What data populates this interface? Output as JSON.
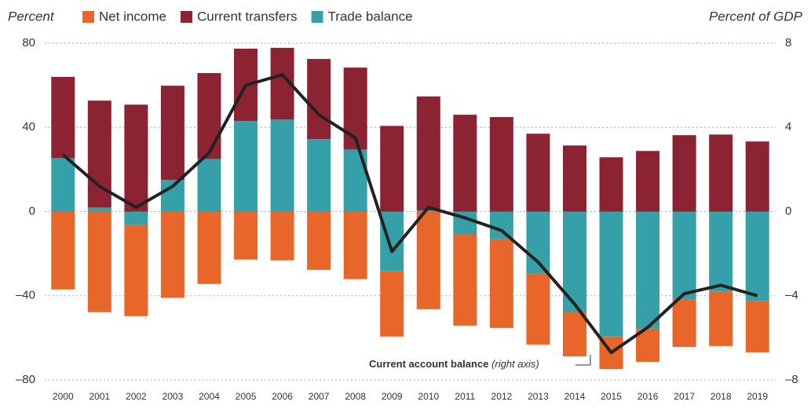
{
  "chart_data": {
    "type": "bar",
    "y_label": "Percent",
    "y2_label": "Percent of GDP",
    "categories": [
      "2000",
      "2001",
      "2002",
      "2003",
      "2004",
      "2005",
      "2006",
      "2007",
      "2008",
      "2009",
      "2010",
      "2011",
      "2012",
      "2013",
      "2014",
      "2015",
      "2016",
      "2017",
      "2018",
      "2019"
    ],
    "series": [
      {
        "name": "Net income",
        "color": "#e8662a",
        "values": [
          -37,
          -47.8,
          -43.3,
          -41,
          -34.4,
          -22.8,
          -23.2,
          -27.7,
          -32.1,
          -31,
          -46.4,
          -43.4,
          -42.2,
          -33.7,
          -20.9,
          -15.4,
          -15.7,
          -22.4,
          -25.8,
          -24.3
        ]
      },
      {
        "name": "Current transfers",
        "color": "#8b2332",
        "values": [
          38.6,
          50.8,
          50.8,
          44.8,
          40.8,
          34.4,
          34.1,
          38.1,
          38.9,
          40.7,
          54.2,
          46,
          44.9,
          37,
          31.4,
          25.8,
          28.8,
          36.3,
          36.6,
          33.3
        ]
      },
      {
        "name": "Trade balance",
        "color": "#36a0a8",
        "values": [
          25.4,
          1.9,
          -6.4,
          15,
          25,
          43,
          43.7,
          34.4,
          29.5,
          -28.4,
          0.5,
          -10.8,
          -13.1,
          -29.5,
          -47.9,
          -59.4,
          -55.7,
          -41.9,
          -38.1,
          -42.6
        ]
      },
      {
        "name": "Current account balance",
        "type": "line",
        "axis": "y2",
        "color": "#222222",
        "values": [
          2.7,
          1.2,
          0.2,
          1.2,
          2.8,
          6.0,
          6.5,
          4.6,
          3.5,
          -1.9,
          0.2,
          -0.3,
          -0.9,
          -2.4,
          -4.4,
          -6.7,
          -5.5,
          -3.9,
          -3.5,
          -4.0
        ]
      }
    ],
    "annotation": {
      "text": "Current account balance",
      "note": "(right axis)"
    },
    "ylim": [
      -80,
      80
    ],
    "yticks": [
      {
        "value": -80,
        "label": "–80"
      },
      {
        "value": -40,
        "label": "–40"
      },
      0,
      40,
      80
    ],
    "y2lim": [
      -8,
      8
    ],
    "y2ticks": [
      {
        "value": -8,
        "label": "–8"
      },
      {
        "value": -4,
        "label": "–4"
      },
      0,
      4,
      8
    ],
    "grid": true
  }
}
